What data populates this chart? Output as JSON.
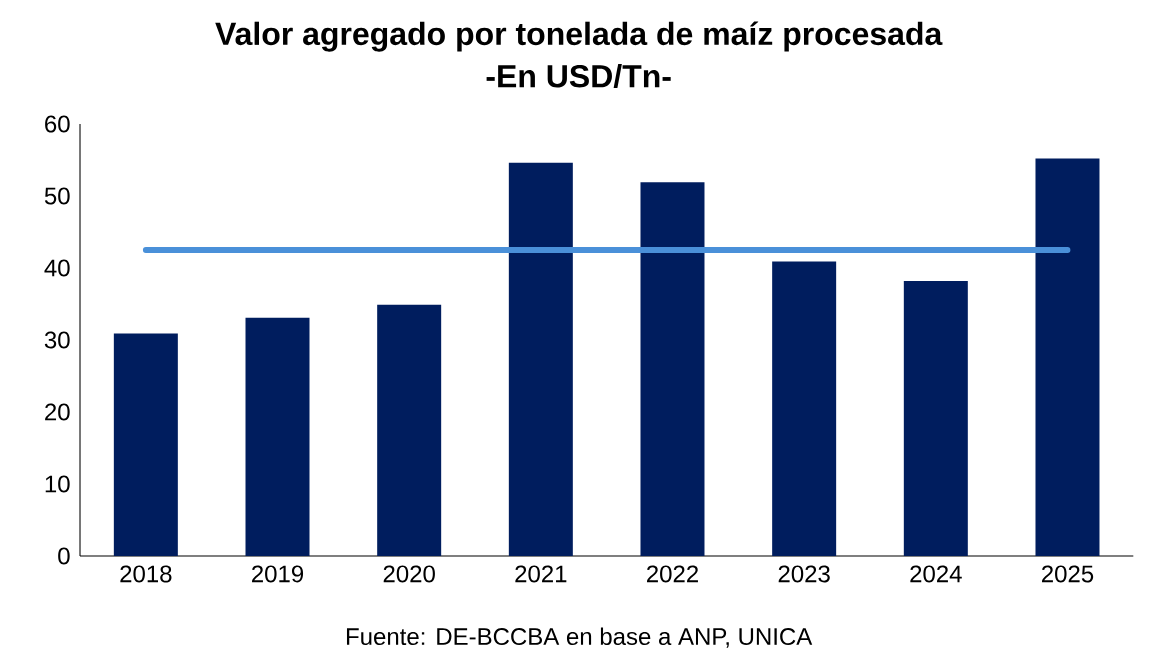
{
  "chart_data": {
    "type": "bar",
    "title": "Valor agregado por tonelada de maíz procesada",
    "subtitle": "-En USD/Tn-",
    "categories": [
      "2018",
      "2019",
      "2020",
      "2021",
      "2022",
      "2023",
      "2024",
      "2025"
    ],
    "values": [
      30.9,
      33.1,
      34.9,
      54.6,
      51.9,
      40.9,
      38.2,
      55.2
    ],
    "color": "#001d5e",
    "ylim": [
      0,
      60
    ],
    "yticks": [
      0,
      10,
      20,
      30,
      40,
      50,
      60
    ],
    "grid": false,
    "ref_lines": [
      {
        "axis": "y",
        "value": 42.5,
        "color": "#4a90d9"
      }
    ],
    "annotations": [
      "Fuente: DE-BCCBA en base a ANP, UNICA"
    ]
  }
}
